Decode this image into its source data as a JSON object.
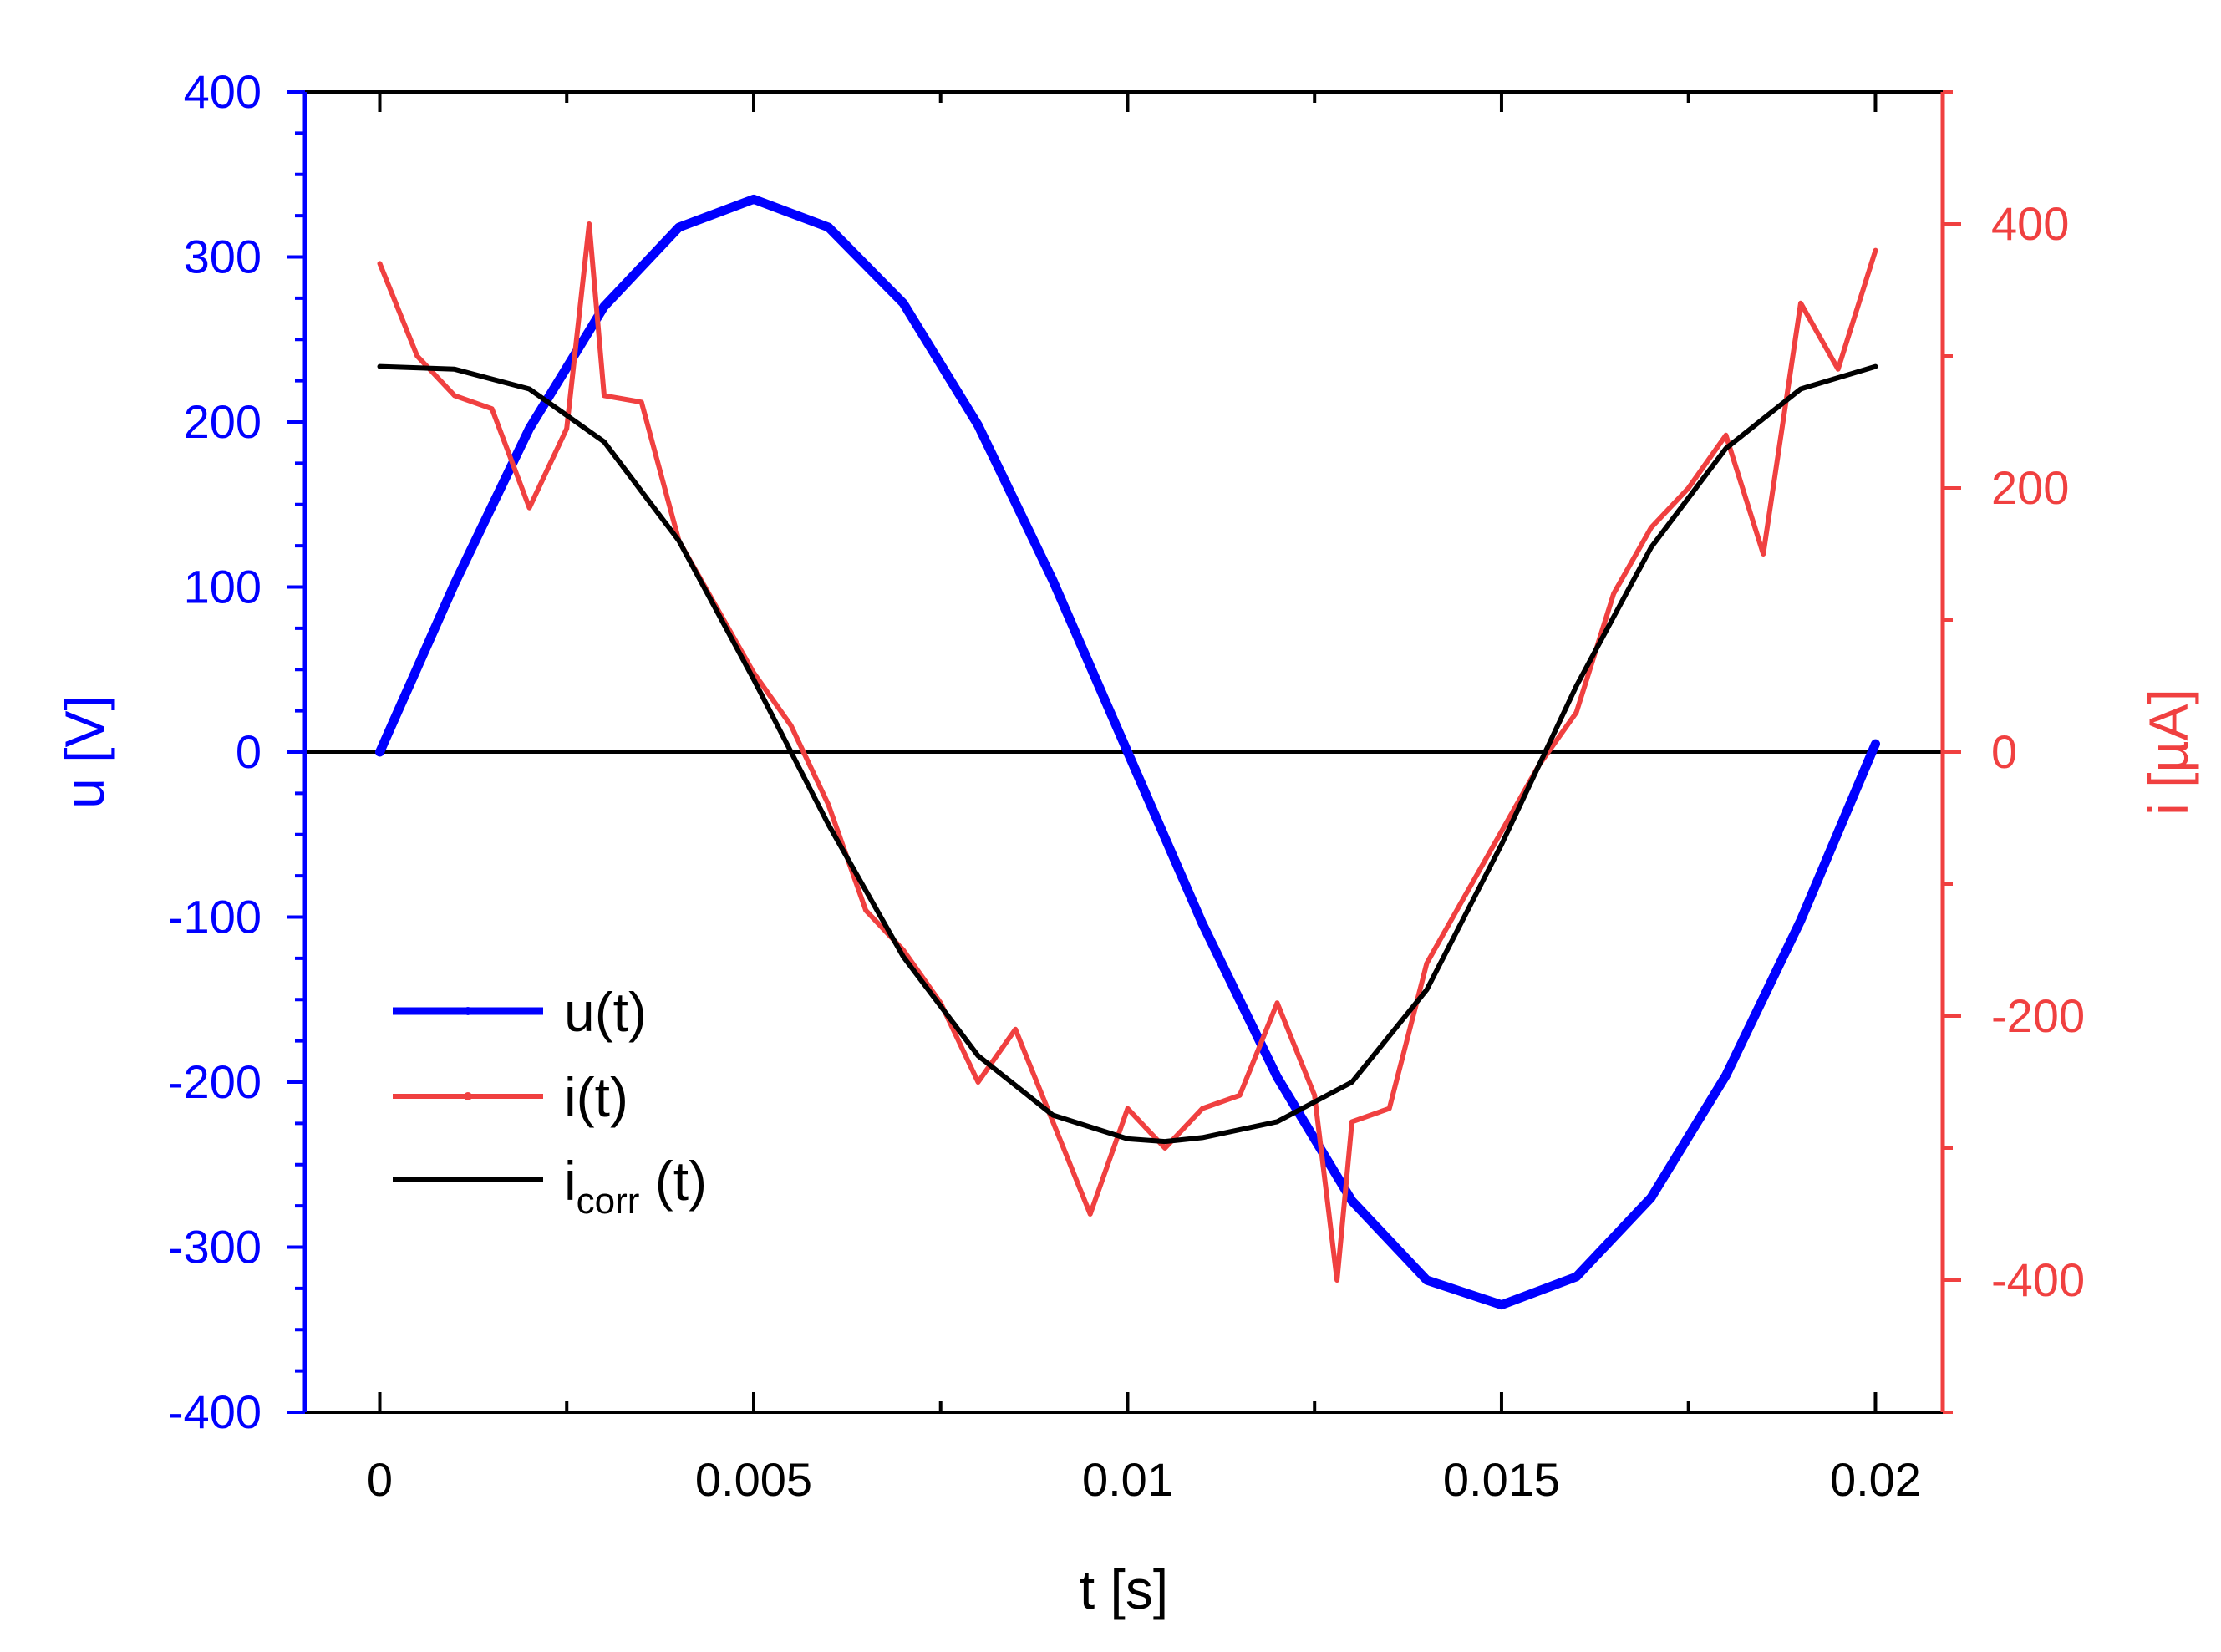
{
  "chart_data": {
    "type": "line",
    "title": "",
    "xlabel": "t [s]",
    "ylabel_left": "u [V]",
    "ylabel_right": "i [µA]",
    "xlim": [
      -0.001,
      0.0209
    ],
    "ylim_left": [
      -400,
      400
    ],
    "ylim_right": [
      -500,
      500
    ],
    "x_ticks": [
      0,
      0.005,
      0.01,
      0.015,
      0.02
    ],
    "x_tick_labels": [
      "0",
      "0.005",
      "0.01",
      "0.015",
      "0.02"
    ],
    "y_left_ticks": [
      400,
      300,
      200,
      100,
      0,
      -100,
      -200,
      -300,
      -400
    ],
    "y_left_tick_labels": [
      "400",
      "300",
      "200",
      "100",
      "0",
      "-100",
      "-200",
      "-300",
      "-400"
    ],
    "y_right_ticks": [
      400,
      200,
      0,
      -200,
      -400
    ],
    "y_right_tick_labels": [
      "400",
      "200",
      "0",
      "-200",
      "-400"
    ],
    "zero_line": true,
    "grid": false,
    "legend_position": "lower-left",
    "colors": {
      "u": "#0000ff",
      "i": "#f04040",
      "icorr": "#000000",
      "axis_left": "#0000ff",
      "axis_right": "#f04040"
    },
    "series": [
      {
        "name": "u(t)",
        "label_main": "u(t)",
        "label_sub": "",
        "label_tail": "",
        "axis": "left",
        "color": "#0000ff",
        "x": [
          0,
          0.001,
          0.002,
          0.003,
          0.004,
          0.005,
          0.006,
          0.007,
          0.008,
          0.009,
          0.01,
          0.011,
          0.012,
          0.013,
          0.014,
          0.015,
          0.016,
          0.017,
          0.018,
          0.019,
          0.02
        ],
        "y": [
          0,
          102,
          196,
          270,
          318,
          335,
          318,
          272,
          198,
          104,
          0,
          -104,
          -197,
          -272,
          -320,
          -335,
          -318,
          -270,
          -196,
          -102,
          5
        ]
      },
      {
        "name": "i(t)",
        "label_main": "i(t)",
        "label_sub": "",
        "label_tail": "",
        "axis": "right",
        "color": "#f04040",
        "x": [
          0,
          0.0005,
          0.001,
          0.0015,
          0.002,
          0.0025,
          0.0028,
          0.003,
          0.0035,
          0.004,
          0.0045,
          0.005,
          0.0055,
          0.006,
          0.0065,
          0.007,
          0.0075,
          0.008,
          0.0085,
          0.009,
          0.0095,
          0.01,
          0.0105,
          0.011,
          0.0115,
          0.012,
          0.0125,
          0.0128,
          0.013,
          0.0135,
          0.014,
          0.0145,
          0.015,
          0.0155,
          0.016,
          0.0165,
          0.017,
          0.0175,
          0.018,
          0.0185,
          0.019,
          0.0195,
          0.02
        ],
        "y": [
          370,
          300,
          270,
          260,
          185,
          245,
          400,
          270,
          265,
          160,
          110,
          60,
          20,
          -40,
          -120,
          -150,
          -190,
          -250,
          -210,
          -280,
          -350,
          -270,
          -300,
          -270,
          -260,
          -190,
          -260,
          -400,
          -280,
          -270,
          -160,
          -110,
          -60,
          -10,
          30,
          120,
          170,
          200,
          240,
          150,
          340,
          290,
          380
        ]
      },
      {
        "name": "icorr(t)",
        "label_main": "i",
        "label_sub": "corr",
        "label_tail": " (t)",
        "axis": "right",
        "color": "#000000",
        "x": [
          0,
          0.001,
          0.002,
          0.003,
          0.004,
          0.005,
          0.006,
          0.007,
          0.008,
          0.009,
          0.01,
          0.0105,
          0.011,
          0.012,
          0.013,
          0.014,
          0.015,
          0.016,
          0.017,
          0.018,
          0.019,
          0.02
        ],
        "y": [
          292,
          290,
          275,
          235,
          160,
          55,
          -55,
          -155,
          -230,
          -275,
          -293,
          -295,
          -292,
          -280,
          -250,
          -180,
          -70,
          50,
          155,
          230,
          275,
          292
        ]
      }
    ]
  }
}
